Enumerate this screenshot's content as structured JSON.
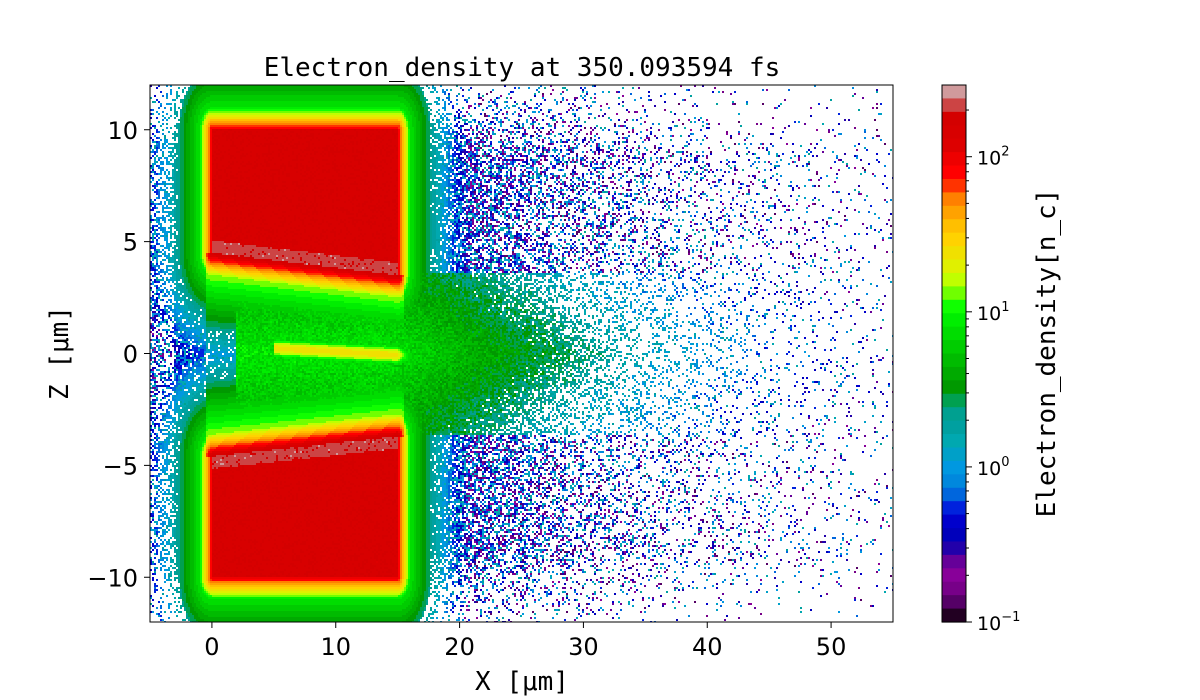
{
  "chart_data": {
    "type": "heatmap",
    "title": "Electron_density at 350.093594 fs",
    "xlabel": "X [μm]",
    "ylabel": "Z [μm]",
    "xlim": [
      -5,
      55
    ],
    "ylim": [
      -12,
      12
    ],
    "xticks": [
      0,
      10,
      20,
      30,
      40,
      50
    ],
    "yticks": [
      -10,
      -5,
      0,
      5,
      10
    ],
    "xtick_labels": [
      "0",
      "10",
      "20",
      "30",
      "40",
      "50"
    ],
    "ytick_labels": [
      "−10",
      "−5",
      "0",
      "5",
      "10"
    ],
    "grid": false,
    "colorbar": {
      "label": "Electron_density[n_c]",
      "scale": "log",
      "range": [
        0.1,
        290
      ],
      "ticks": [
        0.1,
        1,
        10,
        100
      ],
      "tick_labels": [
        {
          "base": "10",
          "exp": "−1"
        },
        {
          "base": "10",
          "exp": "0"
        },
        {
          "base": "10",
          "exp": "1"
        },
        {
          "base": "10",
          "exp": "2"
        }
      ],
      "colors_top_to_bottom": [
        "#d09a9c",
        "#cc4444",
        "#d40000",
        "#d80000",
        "#dd0000",
        "#ee0000",
        "#ff0000",
        "#ff3300",
        "#ff8000",
        "#ffa200",
        "#ffbf00",
        "#ffd200",
        "#f0e000",
        "#e0f000",
        "#c0ff00",
        "#70ff00",
        "#10ff00",
        "#00ee00",
        "#00dd00",
        "#00cc00",
        "#00bb00",
        "#00aa00",
        "#009900",
        "#00a050",
        "#00a090",
        "#00a0a0",
        "#00a8b0",
        "#00a0c8",
        "#0098e0",
        "#0088dd",
        "#0066dd",
        "#0022dd",
        "#0000cc",
        "#0000bb",
        "#2200aa",
        "#660099",
        "#880099",
        "#770088",
        "#550066",
        "#220022"
      ]
    },
    "features": [
      {
        "name": "upper target",
        "x": [
          0,
          15
        ],
        "z_bottom_at_x0": 4.5,
        "z_bottom_at_x15": 3.5,
        "z_top": 10,
        "density_nc": 150
      },
      {
        "name": "lower target",
        "x": [
          0,
          15
        ],
        "z_top_at_x0": -4.6,
        "z_top_at_x15": -3.7,
        "z_bottom": -10,
        "density_nc": 150
      },
      {
        "name": "central channel",
        "x": [
          3,
          30
        ],
        "z": [
          -3,
          3
        ],
        "density_nc": 8
      },
      {
        "name": "axial streak",
        "x": [
          6,
          16
        ],
        "z": 0,
        "density_nc": 25
      }
    ]
  }
}
